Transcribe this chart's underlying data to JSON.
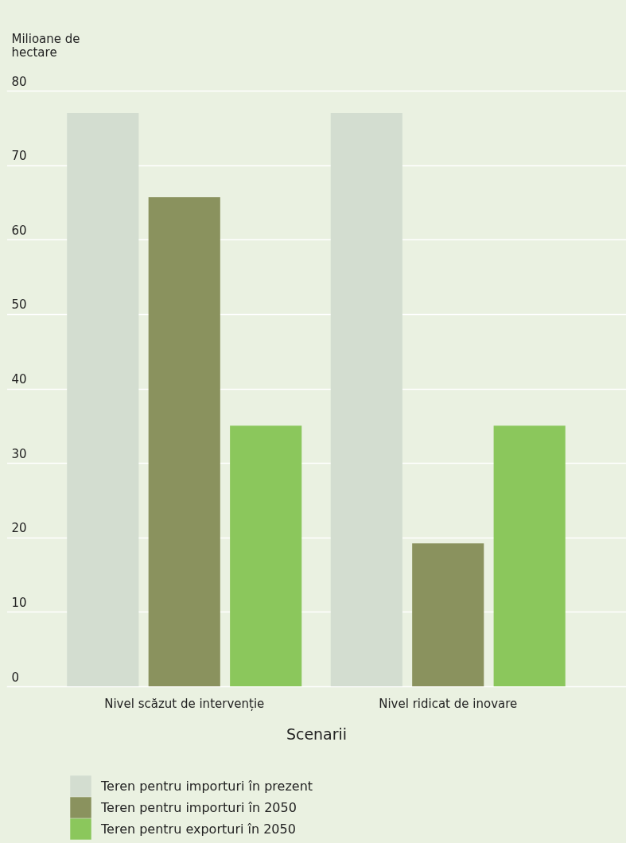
{
  "chart_data": {
    "type": "bar",
    "ylabel": "Milioane de hectare",
    "xlabel": "Scenarii",
    "categories": [
      "Nivel scăzut de intervenție",
      "Nivel ridicat de inovare"
    ],
    "series": [
      {
        "name": "Teren pentru importuri în prezent",
        "color": "#d3ddd0",
        "values": [
          77,
          77
        ]
      },
      {
        "name": "Teren pentru importuri în 2050",
        "color": "#8a925e",
        "values": [
          65.7,
          19.2
        ]
      },
      {
        "name": "Teren pentru exporturi în 2050",
        "color": "#8bc75c",
        "values": [
          35,
          35
        ]
      }
    ],
    "ylim": [
      0,
      80
    ],
    "yticks": [
      0,
      10,
      20,
      30,
      40,
      50,
      60,
      70,
      80
    ],
    "grid": "y",
    "legend": "bottom"
  }
}
